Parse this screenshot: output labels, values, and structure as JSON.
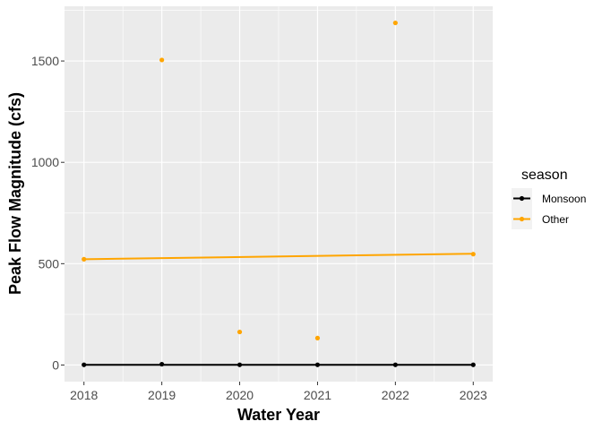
{
  "chart_data": {
    "type": "scatter",
    "xlabel": "Water Year",
    "ylabel": "Peak Flow Magnitude (cfs)",
    "x_ticks": [
      2018,
      2019,
      2020,
      2021,
      2022,
      2023
    ],
    "y_ticks": [
      0,
      500,
      1000,
      1500
    ],
    "xlim": [
      2017.75,
      2023.25
    ],
    "ylim": [
      -82,
      1770
    ],
    "grid": true,
    "legend": {
      "title": "season",
      "position": "right"
    },
    "series": [
      {
        "name": "Monsoon",
        "color": "#000000",
        "points": [
          {
            "x": 2018,
            "y": 1
          },
          {
            "x": 2019,
            "y": 4
          },
          {
            "x": 2020,
            "y": 1
          },
          {
            "x": 2021,
            "y": 1
          },
          {
            "x": 2022,
            "y": 1
          },
          {
            "x": 2023,
            "y": 1
          }
        ],
        "trend": [
          {
            "x": 2018,
            "y": 1
          },
          {
            "x": 2023,
            "y": 1
          }
        ]
      },
      {
        "name": "Other",
        "color": "#FFA500",
        "points": [
          {
            "x": 2018,
            "y": 522
          },
          {
            "x": 2019,
            "y": 1505
          },
          {
            "x": 2020,
            "y": 163
          },
          {
            "x": 2021,
            "y": 133
          },
          {
            "x": 2022,
            "y": 1688
          },
          {
            "x": 2023,
            "y": 547
          }
        ],
        "trend": [
          {
            "x": 2018,
            "y": 522
          },
          {
            "x": 2023,
            "y": 549
          }
        ]
      }
    ]
  }
}
